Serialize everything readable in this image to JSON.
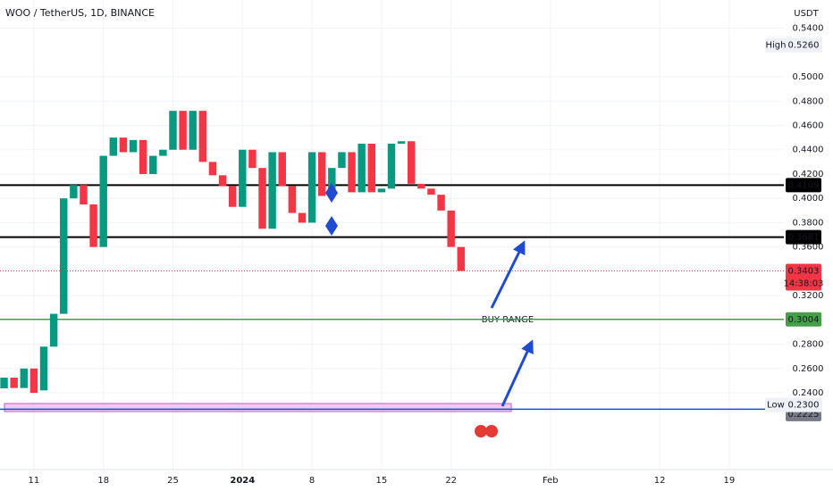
{
  "chart_data": {
    "type": "candlestick",
    "title": "WOO / TetherUS, 1D, BINANCE",
    "currency": "USDT",
    "up_color": "#089981",
    "down_color": "#f23645",
    "categories": [
      null,
      null,
      null,
      "11",
      null,
      null,
      null,
      null,
      null,
      null,
      "18",
      null,
      null,
      null,
      null,
      null,
      null,
      "25",
      null,
      null,
      null,
      null,
      null,
      null,
      "2024",
      null,
      null,
      null,
      null,
      null,
      null,
      "8",
      null,
      null,
      null,
      null,
      null,
      null,
      "15",
      null,
      null,
      null,
      null,
      null,
      null,
      "22",
      null,
      null,
      null,
      null,
      null,
      null,
      null,
      null,
      null,
      "Feb",
      null,
      null,
      null,
      null,
      null,
      null,
      null,
      null,
      null,
      null,
      "12",
      null,
      null,
      null,
      null,
      null,
      null,
      "19",
      null,
      null,
      null,
      null,
      null
    ],
    "open": [
      0.2437,
      0.2525,
      0.244,
      0.26,
      0.242,
      0.278,
      0.305,
      0.4,
      0.411,
      0.395,
      0.36,
      0.435,
      0.45,
      0.438,
      0.448,
      0.42,
      0.435,
      0.44,
      0.472,
      0.44,
      0.472,
      0.43,
      0.419,
      0.41,
      0.393,
      0.44,
      0.425,
      0.375,
      0.438,
      0.41,
      0.388,
      0.38,
      0.438,
      0.402,
      0.425,
      0.438,
      0.405,
      0.445,
      0.405,
      0.408,
      0.445,
      0.447,
      0.412,
      0.408,
      0.403,
      0.39,
      0.36,
      null,
      null,
      null,
      null,
      null,
      null,
      null,
      null,
      null,
      null,
      null,
      null,
      null,
      null,
      null,
      null,
      null,
      null,
      null,
      null,
      null,
      null,
      null,
      null,
      null,
      null,
      null,
      null,
      null,
      null,
      null,
      null
    ],
    "high": {
      "name": "High",
      "value": 0.526,
      "label": "0.5260"
    },
    "low": {
      "name": "Low",
      "value": 0.23,
      "label": "0.2300"
    },
    "close": [
      0.2525,
      0.244,
      0.26,
      0.24,
      0.278,
      0.305,
      0.4,
      0.411,
      0.395,
      0.36,
      0.435,
      0.45,
      0.438,
      0.448,
      0.42,
      0.435,
      0.44,
      0.472,
      0.44,
      0.472,
      0.43,
      0.419,
      0.41,
      0.393,
      0.44,
      0.425,
      0.375,
      0.438,
      0.41,
      0.388,
      0.38,
      0.438,
      0.402,
      0.425,
      0.438,
      0.405,
      0.445,
      0.405,
      0.408,
      0.445,
      0.447,
      0.412,
      0.408,
      0.403,
      0.39,
      0.36,
      0.3403,
      null,
      null,
      null,
      null,
      null,
      null,
      null,
      null,
      null,
      null,
      null,
      null,
      null,
      null,
      null,
      null,
      null,
      null,
      null,
      null,
      null,
      null,
      null,
      null,
      null,
      null,
      null,
      null,
      null,
      null,
      null,
      null
    ],
    "ylim": [
      0.1776,
      0.5632
    ],
    "yticks": [
      {
        "value": 0.54,
        "label": "0.5400"
      },
      {
        "value": 0.5,
        "label": "0.5000"
      },
      {
        "value": 0.48,
        "label": "0.4800"
      },
      {
        "value": 0.46,
        "label": "0.4600"
      },
      {
        "value": 0.44,
        "label": "0.4400"
      },
      {
        "value": 0.42,
        "label": "0.4200"
      },
      {
        "value": 0.4,
        "label": "0.4000"
      },
      {
        "value": 0.38,
        "label": "0.3800"
      },
      {
        "value": 0.36,
        "label": "0.3600"
      },
      {
        "value": 0.32,
        "label": "0.3200"
      },
      {
        "value": 0.28,
        "label": "0.2800"
      },
      {
        "value": 0.26,
        "label": "0.2600"
      },
      {
        "value": 0.24,
        "label": "0.2400"
      }
    ],
    "grid": true,
    "levels": [
      {
        "value": 0.4109,
        "color": "#000000",
        "line": "solid"
      },
      {
        "value": 0.3681,
        "color": "#000000",
        "line": "solid"
      },
      {
        "value": 0.3004,
        "color": "#43a047",
        "line": "solid"
      },
      {
        "value": 0.2265,
        "color": "#1e4bd2",
        "badge": "#089981",
        "line": "solid"
      },
      {
        "value": 0.2225,
        "color": "#787b86",
        "line": "none"
      }
    ],
    "last_price": {
      "value": 0.3403,
      "countdown": "14:38:03",
      "color": "#f23645"
    },
    "zone": [
      0.2246,
      0.2312
    ],
    "annotation": "BUY RANGE"
  }
}
